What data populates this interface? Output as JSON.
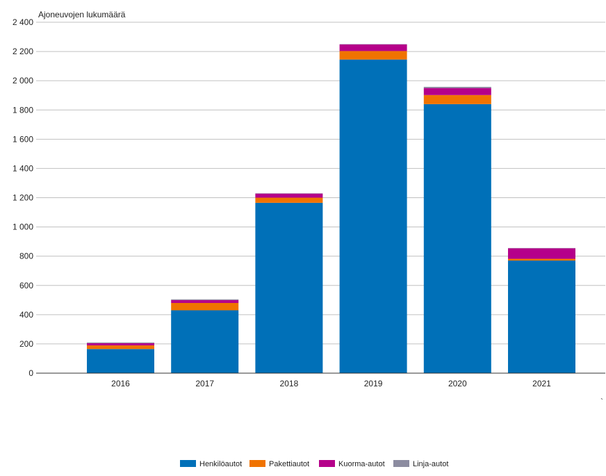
{
  "chart_data": {
    "type": "bar",
    "stacked": true,
    "ylabel": "Ajoneuvojen lukumäärä",
    "xlabel": "",
    "ylim": [
      0,
      2400
    ],
    "yticks": [
      0,
      200,
      400,
      600,
      800,
      1000,
      1200,
      1400,
      1600,
      1800,
      2000,
      2200,
      2400
    ],
    "ytick_labels": [
      "0",
      "200",
      "400",
      "600",
      "800",
      "1 000",
      "1 200",
      "1 400",
      "1 600",
      "1 800",
      "2 000",
      "2 200",
      "2 400"
    ],
    "grid": true,
    "legend_position": "bottom",
    "categories": [
      "2016",
      "2017",
      "2018",
      "2019",
      "2020",
      "2021"
    ],
    "series": [
      {
        "name": "Henkilöautot",
        "color": "#0070b8",
        "values": [
          165,
          430,
          1165,
          2145,
          1840,
          770
        ]
      },
      {
        "name": "Pakettiautot",
        "color": "#f07300",
        "values": [
          25,
          50,
          35,
          58,
          62,
          12
        ]
      },
      {
        "name": "Kuorma-autot",
        "color": "#b5008a",
        "values": [
          15,
          20,
          28,
          45,
          48,
          72
        ]
      },
      {
        "name": "Linja-autot",
        "color": "#8c8ca0",
        "values": [
          5,
          5,
          2,
          2,
          8,
          2
        ]
      }
    ]
  },
  "stray_mark": "`"
}
